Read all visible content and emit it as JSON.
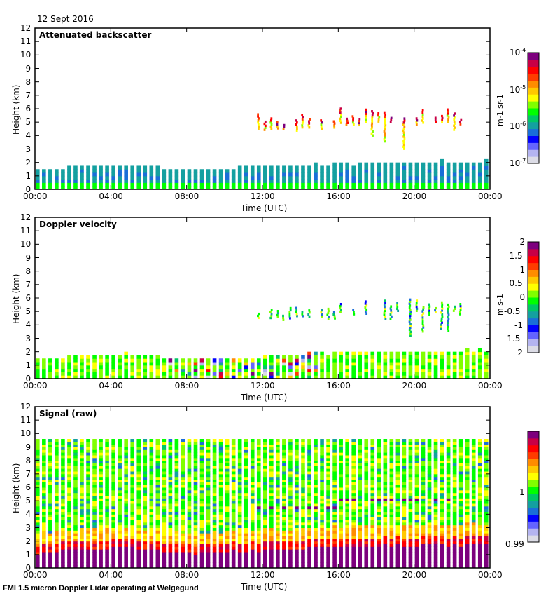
{
  "header": {
    "date": "12 Sept 2016"
  },
  "footer": {
    "caption": "FMI 1.5 micron Doppler Lidar operating at Welgegund"
  },
  "colors": {
    "colormap": [
      "#dcdce6",
      "#b4b4f0",
      "#6464ff",
      "#0000ff",
      "#1a6ed8",
      "#14a0a0",
      "#00c864",
      "#00ff00",
      "#80ff00",
      "#ffff00",
      "#ffc800",
      "#ff8c00",
      "#ff3c00",
      "#ff0000",
      "#c80046",
      "#7d007d"
    ],
    "axis": "#000000"
  },
  "chart_data": [
    {
      "type": "heatmap",
      "title": "Attenuated backscatter",
      "xlabel": "Time (UTC)",
      "ylabel": "Height (km)",
      "xticks": [
        "00:00",
        "04:00",
        "08:00",
        "12:00",
        "16:00",
        "20:00",
        "00:00"
      ],
      "xlim_hours": [
        0,
        24
      ],
      "yticks": [
        "0",
        "1",
        "2",
        "3",
        "4",
        "5",
        "6",
        "7",
        "8",
        "9",
        "10",
        "11",
        "12"
      ],
      "ylim": [
        0,
        12
      ],
      "colorbar": {
        "label": "m-1 sr-1",
        "scale": "log",
        "range": [
          1e-07,
          0.0001
        ],
        "ticks": [
          "10-7",
          "10-6",
          "10-5",
          "10-4"
        ]
      },
      "features": {
        "boundary_layer_top_km": [
          [
            0,
            1.3
          ],
          [
            2,
            1.6
          ],
          [
            5,
            1.75
          ],
          [
            8,
            1.3
          ],
          [
            12,
            1.55
          ],
          [
            16,
            1.8
          ],
          [
            20,
            1.9
          ],
          [
            24,
            2.0
          ]
        ],
        "cloud_layer": {
          "start_hour": 11.8,
          "end_hour": 22.8,
          "base_km": 4.3,
          "top_km": 5.8
        }
      }
    },
    {
      "type": "heatmap",
      "title": "Doppler velocity",
      "xlabel": "Time (UTC)",
      "ylabel": "Height (km)",
      "xticks": [
        "00:00",
        "04:00",
        "08:00",
        "12:00",
        "16:00",
        "20:00",
        "00:00"
      ],
      "xlim_hours": [
        0,
        24
      ],
      "yticks": [
        "0",
        "1",
        "2",
        "3",
        "4",
        "5",
        "6",
        "7",
        "8",
        "9",
        "10",
        "11",
        "12"
      ],
      "ylim": [
        0,
        12
      ],
      "colorbar": {
        "label": "m s-1",
        "scale": "linear",
        "range": [
          -2,
          2
        ],
        "ticks": [
          "2",
          "1.5",
          "1",
          "0.5",
          "0",
          "-0.5",
          "-1",
          "-1.5",
          "-2"
        ]
      }
    },
    {
      "type": "heatmap",
      "title": "Signal (raw)",
      "xlabel": "Time (UTC)",
      "ylabel": "Height (km)",
      "xticks": [
        "00:00",
        "04:00",
        "08:00",
        "12:00",
        "16:00",
        "20:00",
        "00:00"
      ],
      "xlim_hours": [
        0,
        24
      ],
      "yticks": [
        "0",
        "1",
        "2",
        "3",
        "4",
        "5",
        "6",
        "7",
        "8",
        "9",
        "10",
        "11",
        "12"
      ],
      "ylim": [
        0,
        12
      ],
      "max_range_km": 9.5,
      "colorbar": {
        "label": "",
        "scale": "linear",
        "range": [
          0.99,
          1.01
        ],
        "ticks": [
          "1",
          "0.99"
        ]
      }
    }
  ]
}
